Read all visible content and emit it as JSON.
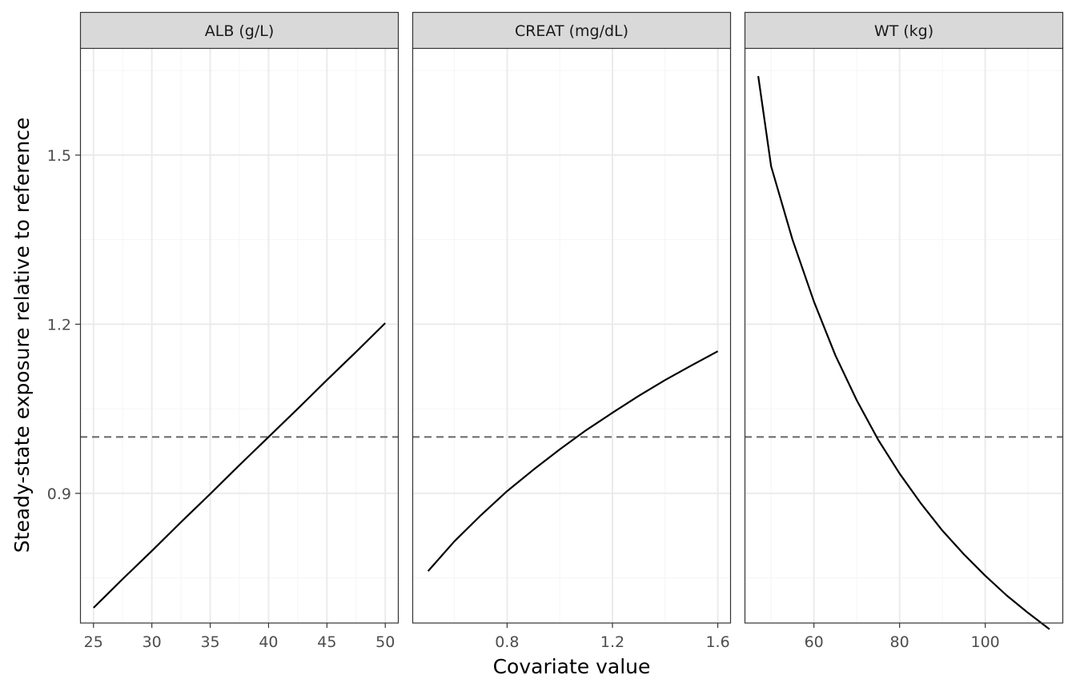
{
  "chart_data": {
    "type": "line",
    "xlabel": "Covariate value",
    "ylabel": "Steady-state exposure relative to reference",
    "ylim": [
      0.67,
      1.69
    ],
    "y_ticks": [
      0.9,
      1.2,
      1.5
    ],
    "y_tick_labels": [
      "0.9",
      "1.2",
      "1.5"
    ],
    "y_minor": [
      0.75,
      1.05,
      1.35,
      1.65
    ],
    "reference_line": {
      "y": 1.0,
      "style": "dashed"
    },
    "grid": true,
    "panels": [
      {
        "strip": "ALB (g/L)",
        "xlim": [
          23.85,
          51.15
        ],
        "x_ticks": [
          25,
          30,
          35,
          40,
          45,
          50
        ],
        "x_tick_labels": [
          "25",
          "30",
          "35",
          "40",
          "45",
          "50"
        ],
        "x_minor": [
          27.5,
          32.5,
          37.5,
          42.5,
          47.5
        ],
        "series": [
          {
            "x": [
              25,
              27.5,
              30,
              32.5,
              35,
              37.5,
              40,
              42.5,
              45,
              47.5,
              50
            ],
            "y": [
              0.697,
              0.748,
              0.798,
              0.849,
              0.899,
              0.95,
              1.0,
              1.05,
              1.101,
              1.151,
              1.202
            ]
          }
        ]
      },
      {
        "strip": "CREAT (mg/dL)",
        "xlim": [
          0.44,
          1.65
        ],
        "x_ticks": [
          0.8,
          1.2,
          1.6
        ],
        "x_tick_labels": [
          "0.8",
          "1.2",
          "1.6"
        ],
        "x_minor": [
          0.6,
          1.0,
          1.4
        ],
        "series": [
          {
            "x": [
              0.5,
              0.6,
              0.7,
              0.8,
              0.9,
              1.0,
              1.1,
              1.2,
              1.3,
              1.4,
              1.5,
              1.6
            ],
            "y": [
              0.762,
              0.815,
              0.861,
              0.904,
              0.942,
              0.978,
              1.012,
              1.043,
              1.073,
              1.101,
              1.127,
              1.152
            ]
          }
        ]
      },
      {
        "strip": "WT (kg)",
        "xlim": [
          43.8,
          118.2
        ],
        "x_ticks": [
          60,
          80,
          100
        ],
        "x_tick_labels": [
          "60",
          "80",
          "100"
        ],
        "x_minor": [
          50,
          70,
          90,
          110
        ],
        "series": [
          {
            "x": [
              47,
              50,
              55,
              60,
              65,
              70,
              75,
              80,
              85,
              90,
              95,
              100,
              105,
              110,
              115
            ],
            "y": [
              1.64,
              1.48,
              1.35,
              1.24,
              1.145,
              1.065,
              0.995,
              0.935,
              0.882,
              0.834,
              0.792,
              0.754,
              0.719,
              0.688,
              0.659
            ]
          }
        ]
      }
    ]
  },
  "colors": {
    "strip_fill": "#d9d9d9",
    "panel_border": "#333333",
    "grid_major": "#ebebeb",
    "grid_minor": "#f5f5f5",
    "line": "#000000",
    "reference": "#666666",
    "tick_text": "#4d4d4d"
  }
}
